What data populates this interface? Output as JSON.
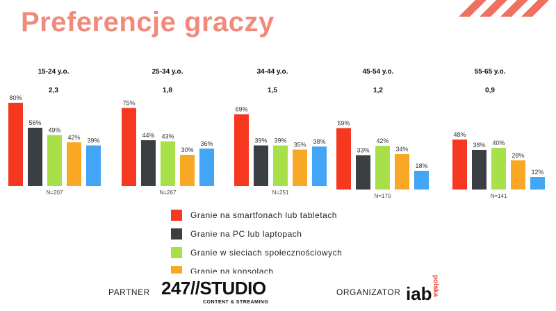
{
  "title": "Preferencje graczy",
  "colors": {
    "title": "#f08a7a",
    "accent_stripes": "#f07060",
    "series": [
      "#f5381f",
      "#3a3f44",
      "#a8e04a",
      "#f9a825",
      "#42a5f5"
    ]
  },
  "chart_data": [
    {
      "type": "bar",
      "title": "15-24 y.o.",
      "subtitle": "2,3",
      "n_label": "N=207",
      "categories": [
        "Granie na smartfonach lub tabletach",
        "Granie na PC lub laptopach",
        "Granie w sieciach społecznościowych",
        "Granie na konsolach",
        ""
      ],
      "values": [
        80,
        56,
        49,
        42,
        39
      ],
      "labels": [
        "80%",
        "56%",
        "49%",
        "42%",
        "39%"
      ]
    },
    {
      "type": "bar",
      "title": "25-34 y.o.",
      "subtitle": "1,8",
      "n_label": "N=267",
      "categories": [
        "Granie na smartfonach lub tabletach",
        "Granie na PC lub laptopach",
        "Granie w sieciach społecznościowych",
        "Granie na konsolach",
        ""
      ],
      "values": [
        75,
        44,
        43,
        30,
        36
      ],
      "labels": [
        "75%",
        "44%",
        "43%",
        "30%",
        "36%"
      ]
    },
    {
      "type": "bar",
      "title": "34-44 y.o.",
      "subtitle": "1,5",
      "n_label": "N=251",
      "categories": [
        "Granie na smartfonach lub tabletach",
        "Granie na PC lub laptopach",
        "Granie w sieciach społecznościowych",
        "Granie na konsolach",
        ""
      ],
      "values": [
        69,
        39,
        39,
        35,
        38
      ],
      "labels": [
        "69%",
        "39%",
        "39%",
        "35%",
        "38%"
      ]
    },
    {
      "type": "bar",
      "title": "45-54 y.o.",
      "subtitle": "1,2",
      "n_label": "N=170",
      "categories": [
        "Granie na smartfonach lub tabletach",
        "Granie na PC lub laptopach",
        "Granie w sieciach społecznościowych",
        "Granie na konsolach",
        ""
      ],
      "values": [
        59,
        33,
        42,
        34,
        18
      ],
      "labels": [
        "59%",
        "33%",
        "42%",
        "34%",
        "18%"
      ]
    },
    {
      "type": "bar",
      "title": "55-65 y.o.",
      "subtitle": "0,9",
      "n_label": "N=141",
      "categories": [
        "Granie na smartfonach lub tabletach",
        "Granie na PC lub laptopach",
        "Granie w sieciach społecznościowych",
        "Granie na konsolach",
        ""
      ],
      "values": [
        48,
        38,
        40,
        28,
        12
      ],
      "labels": [
        "48%",
        "38%",
        "40%",
        "28%",
        "12%"
      ]
    }
  ],
  "legend": [
    {
      "label": "Granie na smartfonach lub tabletach"
    },
    {
      "label": "Granie na PC lub laptopach"
    },
    {
      "label": "Granie w sieciach społecznościowych"
    },
    {
      "label": "Granie na konsolach"
    }
  ],
  "footer": {
    "partner_label": "PARTNER",
    "partner_logo_main": "247//STUDIO",
    "partner_logo_sub": "CONTENT & STREAMING",
    "organizer_label": "ORGANIZATOR",
    "organizer_logo_main": "iab",
    "organizer_logo_sub": "polska"
  }
}
